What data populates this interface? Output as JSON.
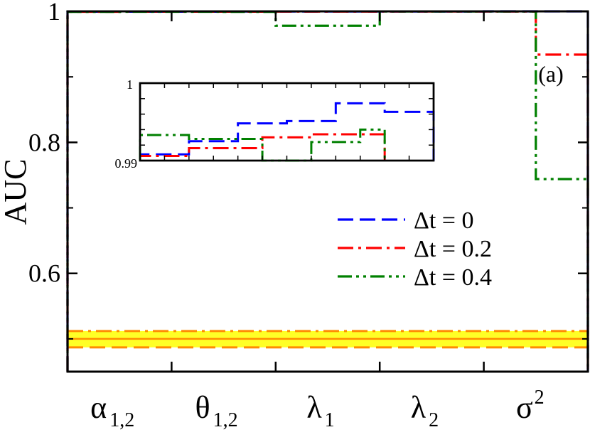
{
  "chart_data": {
    "type": "line",
    "panel_label": "(a)",
    "ylabel": "AUC",
    "xlabel": "",
    "ylim": [
      0.45,
      1.0
    ],
    "yticks": [
      {
        "value": 0.6,
        "label": "0.6"
      },
      {
        "value": 0.8,
        "label": "0.8"
      },
      {
        "value": 1.0,
        "label": "1"
      }
    ],
    "categories": [
      {
        "base": "α",
        "sub": "1,2",
        "sup": ""
      },
      {
        "base": "θ",
        "sub": "1,2",
        "sup": ""
      },
      {
        "base": "λ",
        "sub": "1",
        "sup": ""
      },
      {
        "base": "λ",
        "sub": "2",
        "sup": ""
      },
      {
        "base": "σ",
        "sub": "",
        "sup": "2"
      }
    ],
    "xlim": [
      0,
      5
    ],
    "series": [
      {
        "name": "Δt = 0",
        "color": "#0000ff",
        "dash": "dash",
        "steps": [
          [
            0,
            0.9995
          ],
          [
            0.5,
            0.9996
          ],
          [
            1,
            0.9996
          ],
          [
            1.5,
            0.9999
          ],
          [
            2,
            0.9999
          ],
          [
            2.5,
            0.9998
          ],
          [
            3,
            0.9998
          ],
          [
            3.5,
            0.9999
          ],
          [
            4,
            1.0
          ],
          [
            4.5,
            1.0
          ],
          [
            5,
            1.0
          ]
        ]
      },
      {
        "name": "Δt = 0.2",
        "color": "#ff0000",
        "dash": "dashdot",
        "steps": [
          [
            0,
            0.9994
          ],
          [
            0.5,
            0.9995
          ],
          [
            1,
            0.9995
          ],
          [
            1.5,
            0.9996
          ],
          [
            2,
            0.9997
          ],
          [
            2.5,
            0.9997
          ],
          [
            3,
            0.9998
          ],
          [
            3.5,
            0.9998
          ],
          [
            4,
            0.9999
          ],
          [
            4.5,
            0.934
          ],
          [
            5,
            0.934
          ]
        ]
      },
      {
        "name": "Δt = 0.4",
        "color": "#008000",
        "dash": "dashdotdot",
        "steps": [
          [
            0,
            0.9993
          ],
          [
            0.5,
            0.9994
          ],
          [
            1,
            0.9994
          ],
          [
            1.5,
            0.9993
          ],
          [
            2,
            0.978
          ],
          [
            2.5,
            0.978
          ],
          [
            3,
            0.9998
          ],
          [
            3.5,
            0.9999
          ],
          [
            4,
            0.9999
          ],
          [
            4.5,
            0.744
          ],
          [
            5,
            0.744
          ]
        ]
      }
    ],
    "baseline": {
      "value": 0.5,
      "band": [
        0.487,
        0.512
      ],
      "band_color": "#ffff00",
      "line_color": "#ff8c00"
    },
    "legend": {
      "position": "center-right",
      "entries": [
        "Δt = 0",
        "Δt = 0.2",
        "Δt = 0.4"
      ]
    },
    "inset": {
      "ylim": [
        0.99,
        1.0
      ],
      "ytick_labels": [
        "0.99",
        "1"
      ],
      "series": [
        {
          "name": "Δt = 0",
          "color": "#0000ff",
          "dash": "dash",
          "steps": [
            [
              0,
              0.9908
            ],
            [
              0.5,
              0.9908
            ],
            [
              1,
              0.9925
            ],
            [
              1.5,
              0.9925
            ],
            [
              2,
              0.9948
            ],
            [
              2.5,
              0.9948
            ],
            [
              3,
              0.9951
            ],
            [
              3.5,
              0.9951
            ],
            [
              4,
              0.9974
            ],
            [
              4.5,
              0.9974
            ],
            [
              5,
              0.9963
            ],
            [
              5.5,
              0.9963
            ],
            [
              6,
              0.9963
            ]
          ]
        },
        {
          "name": "Δt = 0.2",
          "color": "#ff0000",
          "dash": "dashdot",
          "steps": [
            [
              0,
              0.9906
            ],
            [
              0.5,
              0.9906
            ],
            [
              1,
              0.9916
            ],
            [
              1.5,
              0.9916
            ],
            [
              2,
              0.9916
            ],
            [
              2.5,
              0.993
            ],
            [
              3,
              0.993
            ],
            [
              3.5,
              0.9934
            ],
            [
              4,
              0.9934
            ],
            [
              4.5,
              0.9934
            ],
            [
              5,
              0.99
            ]
          ]
        },
        {
          "name": "Δt = 0.4",
          "color": "#008000",
          "dash": "dashdotdot",
          "steps": [
            [
              0,
              0.9933
            ],
            [
              0.5,
              0.9933
            ],
            [
              1,
              0.9928
            ],
            [
              1.5,
              0.9928
            ],
            [
              2,
              0.9928
            ],
            [
              2.5,
              0.99
            ],
            [
              3,
              0.99
            ],
            [
              3.5,
              0.9924
            ],
            [
              4,
              0.9924
            ],
            [
              4.5,
              0.994
            ],
            [
              5,
              0.994
            ]
          ]
        }
      ]
    }
  }
}
